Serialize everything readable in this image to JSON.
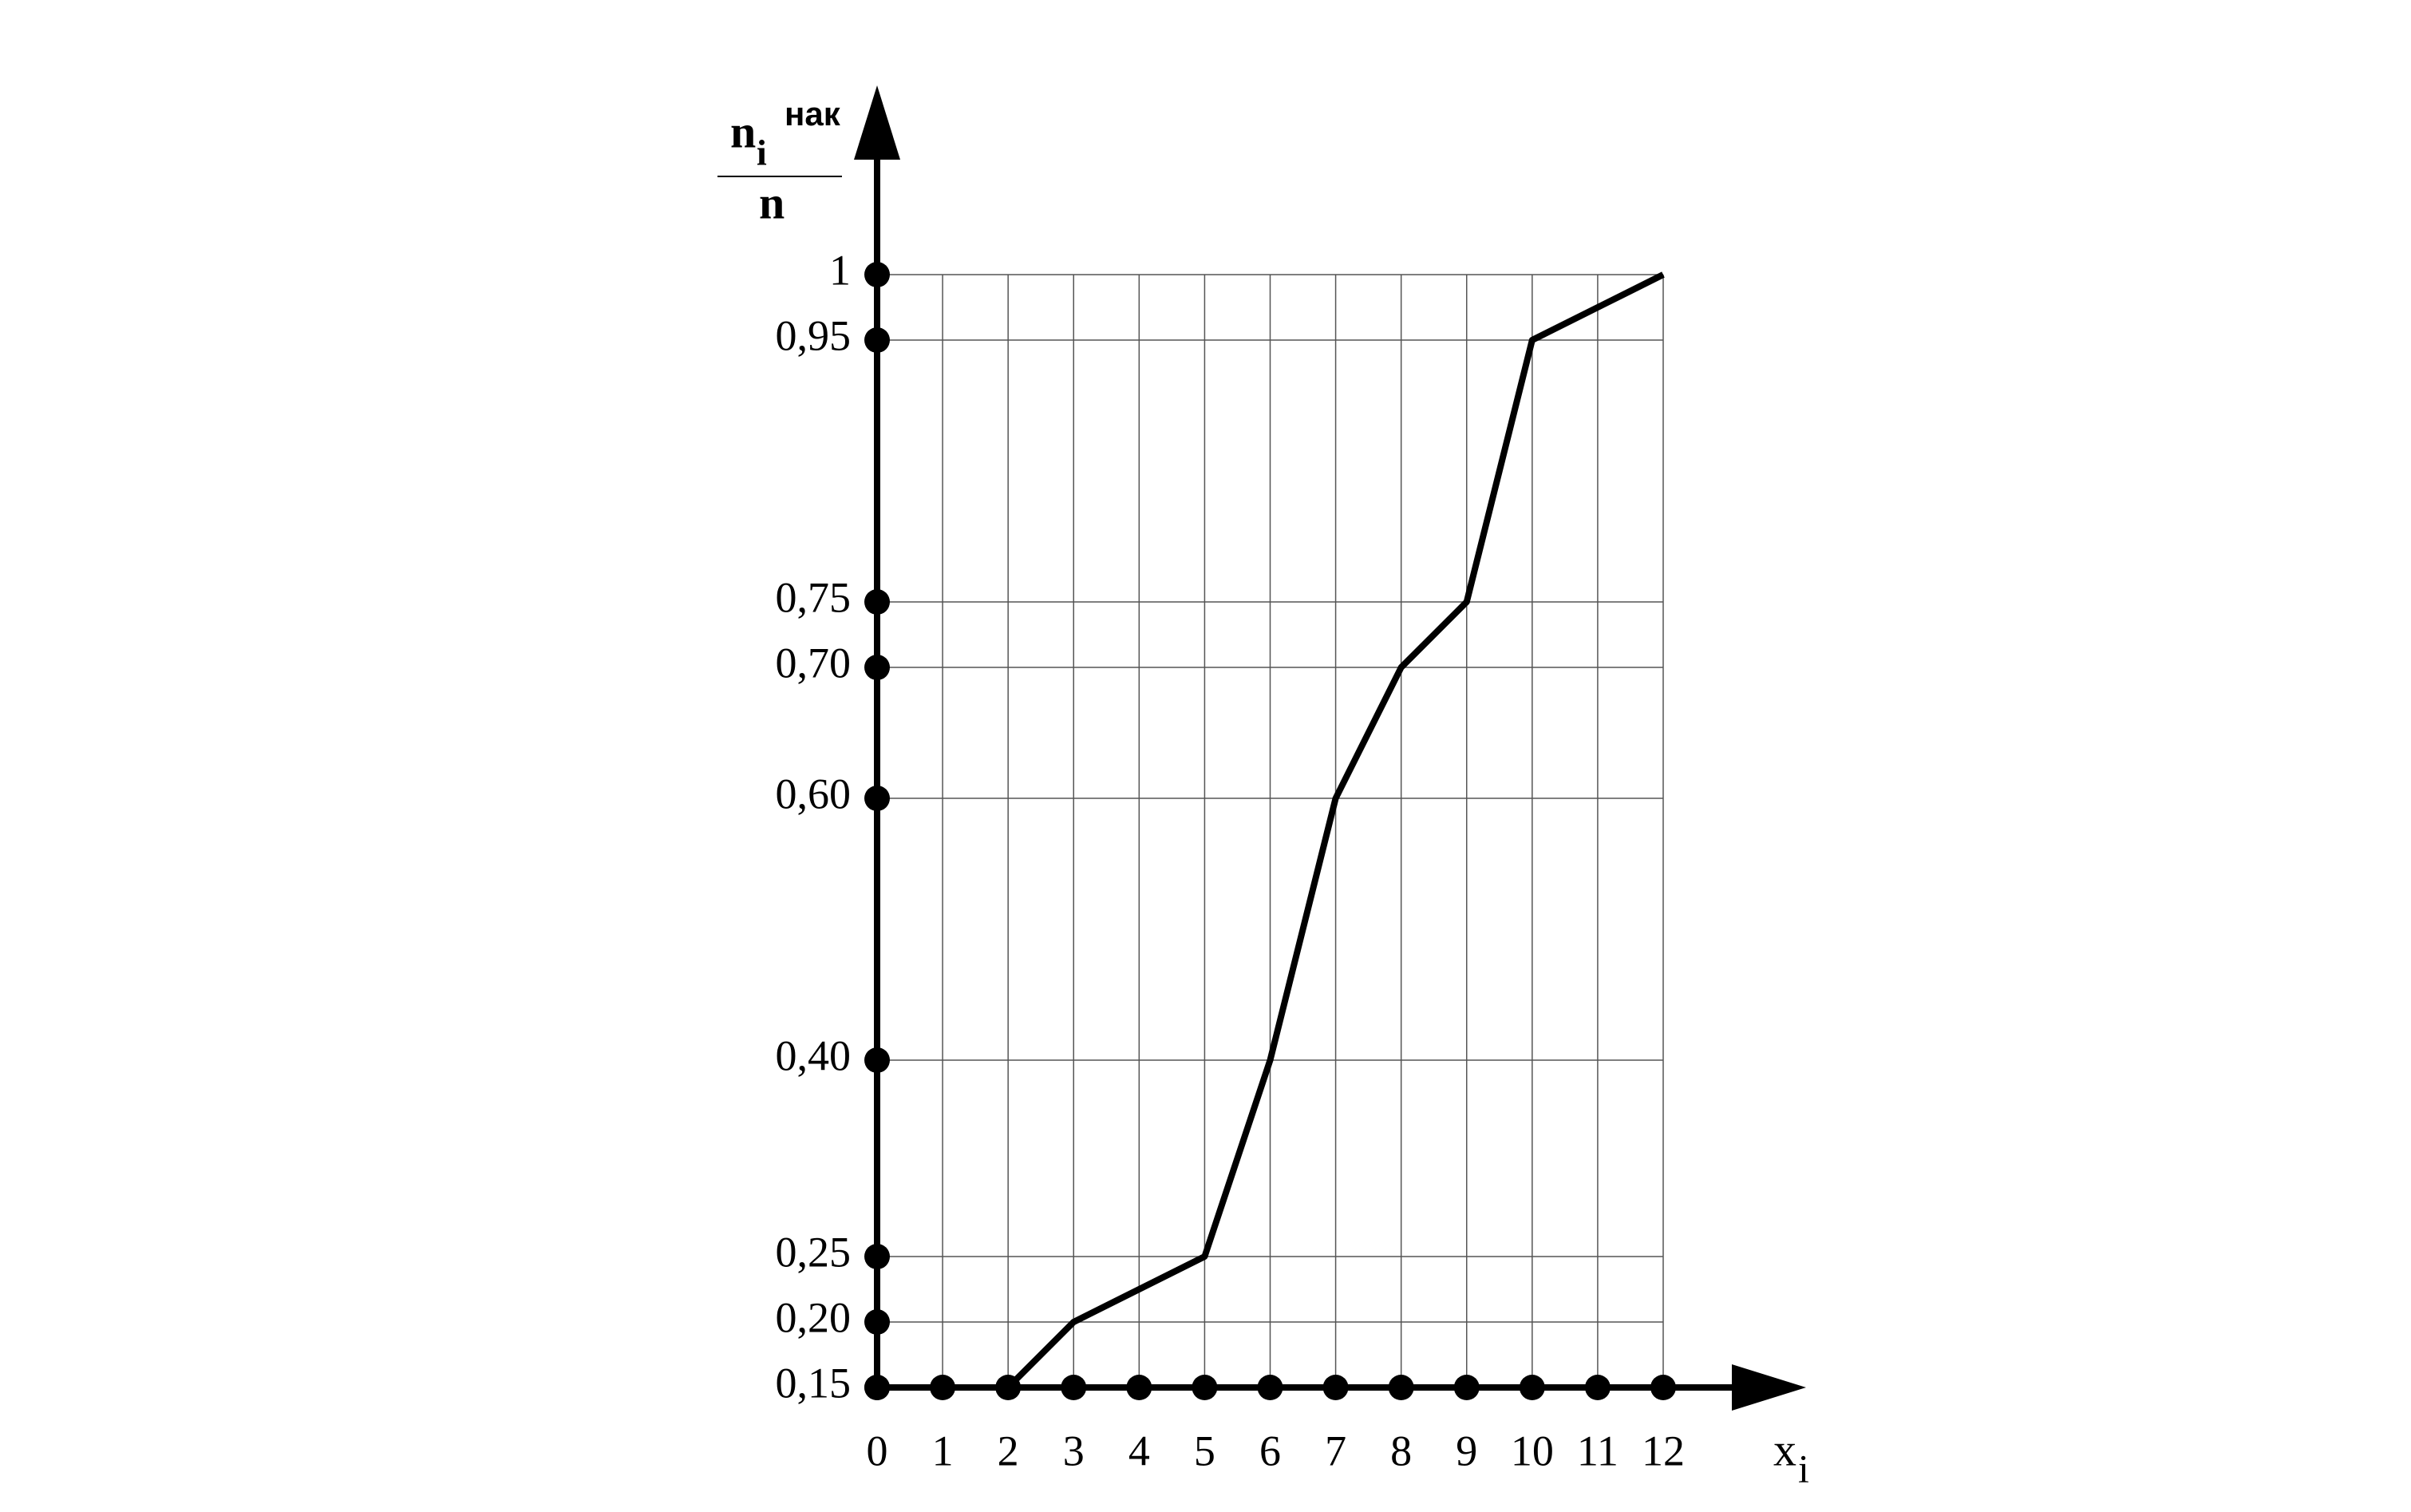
{
  "chart_data": {
    "type": "line",
    "ylabel": {
      "base": "n",
      "subscript": "i",
      "superscript": "нак",
      "denominator": "n"
    },
    "xlabel": {
      "base": "x",
      "subscript": "i"
    },
    "x": [
      2,
      3,
      5,
      6,
      7,
      8,
      9,
      10,
      12
    ],
    "values": [
      0.15,
      0.2,
      0.25,
      0.4,
      0.6,
      0.7,
      0.75,
      0.95,
      1
    ],
    "color": "#000000",
    "xlim": [
      0,
      12
    ],
    "ylim": [
      0.15,
      1
    ],
    "xticks": [
      0,
      1,
      2,
      3,
      4,
      5,
      6,
      7,
      8,
      9,
      10,
      11,
      12
    ],
    "yticks": [
      {
        "value": 0.15,
        "label": "0,15"
      },
      {
        "value": 0.2,
        "label": "0,20"
      },
      {
        "value": 0.25,
        "label": "0,25"
      },
      {
        "value": 0.4,
        "label": "0,40"
      },
      {
        "value": 0.6,
        "label": "0,60"
      },
      {
        "value": 0.7,
        "label": "0,70"
      },
      {
        "value": 0.75,
        "label": "0,75"
      },
      {
        "value": 0.95,
        "label": "0,95"
      },
      1
    ],
    "grid": true
  }
}
